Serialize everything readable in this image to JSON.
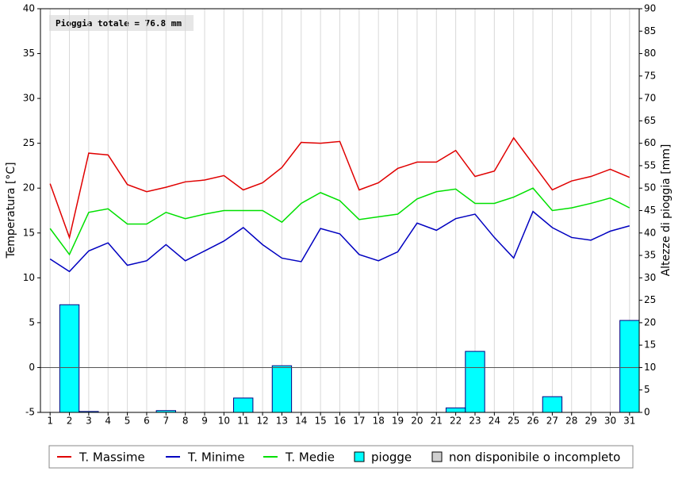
{
  "chart_data": {
    "type": "line",
    "annotation": "Pioggia totale = 76.8 mm",
    "ylabel": "Temperatura [°C]",
    "y2label": "Altezze di pioggia [mm]",
    "categories": [
      "1",
      "2",
      "3",
      "4",
      "5",
      "6",
      "7",
      "8",
      "9",
      "10",
      "11",
      "12",
      "13",
      "14",
      "15",
      "16",
      "17",
      "18",
      "19",
      "20",
      "21",
      "22",
      "23",
      "24",
      "25",
      "26",
      "27",
      "28",
      "29",
      "30",
      "31"
    ],
    "series": [
      {
        "name": "T. Massime",
        "color": "#e00000",
        "type": "line",
        "axis": "y",
        "values": [
          20.5,
          14.5,
          23.9,
          23.7,
          20.4,
          19.6,
          20.1,
          20.7,
          20.9,
          21.4,
          19.8,
          20.6,
          22.3,
          25.1,
          25.0,
          25.2,
          19.8,
          20.6,
          22.2,
          22.9,
          22.9,
          24.2,
          21.3,
          21.9,
          25.6,
          22.7,
          19.8,
          20.8,
          21.3,
          22.1,
          21.2
        ]
      },
      {
        "name": "T. Minime",
        "color": "#0000c0",
        "type": "line",
        "axis": "y",
        "values": [
          12.1,
          10.7,
          13.0,
          13.9,
          11.4,
          11.9,
          13.7,
          11.9,
          13.0,
          14.1,
          15.6,
          13.7,
          12.2,
          11.8,
          15.5,
          14.9,
          12.6,
          11.9,
          12.9,
          16.1,
          15.3,
          16.6,
          17.1,
          14.5,
          12.2,
          17.4,
          15.6,
          14.5,
          14.2,
          15.2,
          15.8
        ]
      },
      {
        "name": "T. Medie",
        "color": "#00e000",
        "type": "line",
        "axis": "y",
        "values": [
          15.5,
          12.6,
          17.3,
          17.7,
          16.0,
          16.0,
          17.3,
          16.6,
          17.1,
          17.5,
          17.5,
          17.5,
          16.2,
          18.3,
          19.5,
          18.6,
          16.5,
          16.8,
          17.1,
          18.8,
          19.6,
          19.9,
          18.3,
          18.3,
          19.0,
          20.0,
          17.5,
          17.8,
          18.3,
          18.9,
          17.8
        ]
      },
      {
        "name": "piogge",
        "color": "#00ffff",
        "type": "bar",
        "axis": "y2",
        "values": [
          0,
          24.0,
          0.2,
          0,
          0,
          0,
          0.4,
          0,
          0,
          0,
          3.2,
          0,
          10.4,
          0,
          0,
          0,
          0,
          0,
          0,
          0,
          0,
          1.0,
          13.6,
          0,
          0,
          0,
          3.5,
          0,
          0,
          0,
          20.5
        ]
      }
    ],
    "legend_extra": {
      "name": "non disponibile o incompleto",
      "color": "#d0d0d0"
    },
    "ylim": [
      -5,
      40
    ],
    "yticks": [
      -5,
      0,
      5,
      10,
      15,
      20,
      25,
      30,
      35,
      40
    ],
    "y2lim": [
      0,
      90
    ],
    "y2ticks": [
      0,
      5,
      10,
      15,
      20,
      25,
      30,
      35,
      40,
      45,
      50,
      55,
      60,
      65,
      70,
      75,
      80,
      85,
      90
    ],
    "grid": true,
    "legend": "bottom"
  }
}
